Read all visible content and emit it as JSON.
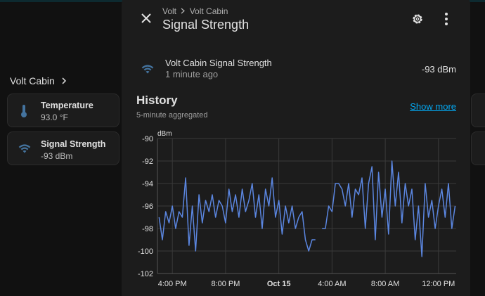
{
  "sidebar": {
    "area": "Volt Cabin",
    "cards": [
      {
        "name": "Temperature",
        "state": "93.0 °F"
      },
      {
        "name": "Signal Strength",
        "state": "-93 dBm"
      }
    ]
  },
  "dialog": {
    "breadcrumb": [
      "Volt",
      "Volt Cabin"
    ],
    "title": "Signal Strength",
    "entity": {
      "name": "Volt Cabin Signal Strength",
      "last_changed": "1 minute ago",
      "state": "-93 dBm"
    },
    "history": {
      "title": "History",
      "subtitle": "5-minute aggregated",
      "link": "Show more"
    }
  },
  "chart_data": {
    "type": "line",
    "ylabel": "dBm",
    "color": "#5b86e0",
    "grid": true,
    "x": [
      15,
      15.25,
      15.5,
      15.75,
      16,
      16.25,
      16.5,
      16.75,
      17,
      17.25,
      17.5,
      17.75,
      18,
      18.25,
      18.5,
      18.75,
      19,
      19.25,
      19.5,
      19.75,
      20,
      20.25,
      20.5,
      20.75,
      21,
      21.25,
      21.5,
      21.75,
      22,
      22.25,
      22.5,
      22.75,
      23,
      23.25,
      23.5,
      23.75,
      24,
      24.25,
      24.5,
      24.75,
      25,
      25.25,
      25.5,
      25.75,
      26,
      26.25,
      26.5,
      26.75,
      27,
      27.25,
      27.5,
      27.75,
      28,
      28.25,
      28.5,
      28.75,
      29,
      29.25,
      29.5,
      29.75,
      30,
      30.25,
      30.5,
      30.75,
      31,
      31.25,
      31.5,
      31.75,
      32,
      32.25,
      32.5,
      32.75,
      33,
      33.25,
      33.5,
      33.75,
      34,
      34.25,
      34.5,
      34.75,
      35,
      35.25,
      35.5,
      35.75,
      36,
      36.25,
      36.5,
      36.75,
      37,
      37.25
    ],
    "values": [
      -97,
      -99,
      -96.5,
      -97.5,
      -96,
      -98,
      -96.5,
      -97,
      -93.5,
      -99.5,
      -96,
      -100,
      -95,
      -97.5,
      -95.5,
      -96.5,
      -95,
      -97,
      -95.5,
      -96,
      -97.5,
      -94.5,
      -96.5,
      -95,
      -97,
      -94.5,
      -96.5,
      -95.5,
      -94,
      -97,
      -95,
      -98,
      -94.5,
      -96,
      -93.5,
      -97,
      -95.5,
      -98.5,
      -96,
      -97.5,
      -96,
      -98,
      -97,
      -96.5,
      -99,
      -100,
      -99,
      -99,
      null,
      -98,
      -98,
      -96,
      -96.5,
      -94,
      -94,
      -94.5,
      -96,
      -94,
      -97,
      -94.5,
      -95,
      -93.5,
      -98,
      -94,
      -92.5,
      -99,
      -93,
      -97,
      -94.5,
      -98.5,
      -92,
      -96,
      -93,
      -97.5,
      -94,
      -96,
      -94.5,
      -99,
      -96,
      -100.5,
      -94,
      -97,
      -95.5,
      -98,
      -96,
      -94.5,
      -97,
      -94,
      -98,
      -96
    ],
    "xlim": [
      14.88,
      37.33
    ],
    "xticks": [
      {
        "value": 16,
        "label": "4:00 PM"
      },
      {
        "value": 20,
        "label": "8:00 PM"
      },
      {
        "value": 24,
        "label": "Oct 15"
      },
      {
        "value": 28,
        "label": "4:00 AM"
      },
      {
        "value": 32,
        "label": "8:00 AM"
      },
      {
        "value": 36,
        "label": "12:00 PM"
      }
    ],
    "ylim": [
      -102,
      -90
    ],
    "yticks": [
      -102,
      -100,
      -98,
      -96,
      -94,
      -92,
      -90
    ]
  }
}
